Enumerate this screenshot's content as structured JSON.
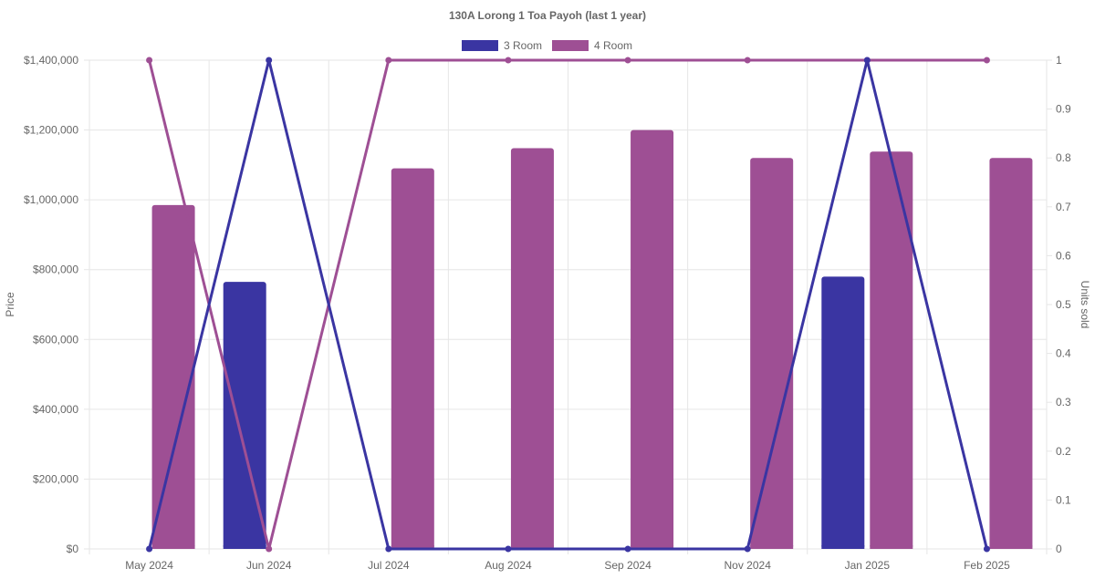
{
  "chart_data": {
    "type": "bar",
    "title": "130A Lorong 1 Toa Payoh (last 1 year)",
    "categories": [
      "May 2024",
      "Jun 2024",
      "Jul 2024",
      "Aug 2024",
      "Sep 2024",
      "Nov 2024",
      "Jan 2025",
      "Feb 2025"
    ],
    "ylabel": "Price",
    "y2label": "Units sold",
    "ylim": [
      0,
      1400000
    ],
    "y2lim": [
      0,
      1
    ],
    "yticks": [
      "$0",
      "$200,000",
      "$400,000",
      "$600,000",
      "$800,000",
      "$1,000,000",
      "$1,200,000",
      "$1,400,000"
    ],
    "y2ticks": [
      "0",
      "0.1",
      "0.2",
      "0.3",
      "0.4",
      "0.5",
      "0.6",
      "0.7",
      "0.8",
      "0.9",
      "1"
    ],
    "grid": true,
    "legend_position": "top",
    "series": [
      {
        "name": "3 Room",
        "color": "#3a35a2",
        "price": [
          null,
          765000,
          null,
          null,
          null,
          null,
          780000,
          null
        ],
        "units_sold": [
          0,
          1,
          0,
          0,
          0,
          0,
          1,
          0
        ]
      },
      {
        "name": "4 Room",
        "color": "#9e4f94",
        "price": [
          985000,
          null,
          1090000,
          1148000,
          1200000,
          1120000,
          1138000,
          1120000
        ],
        "units_sold": [
          1,
          0,
          1,
          1,
          1,
          1,
          1,
          1
        ]
      }
    ]
  }
}
